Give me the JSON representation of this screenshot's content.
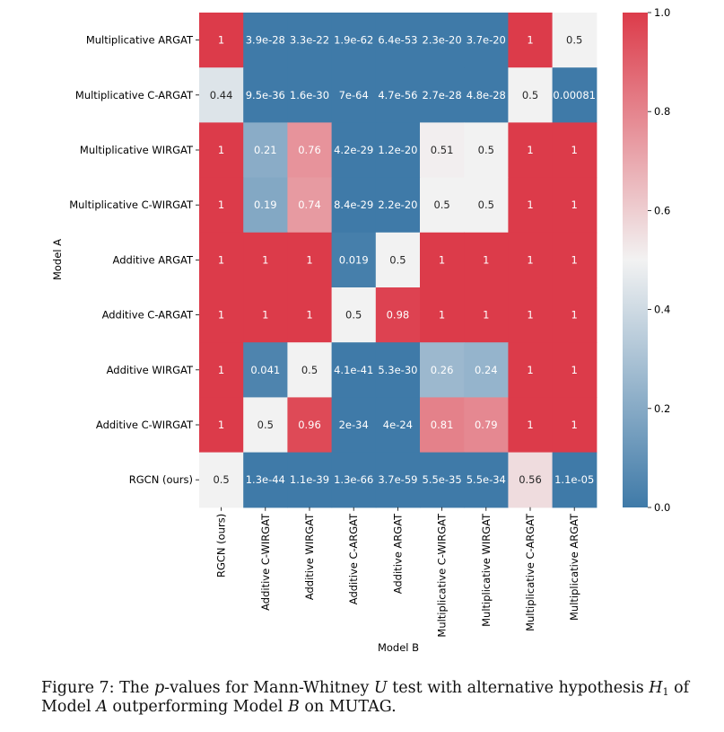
{
  "chart_data": {
    "type": "heatmap",
    "title": "",
    "xlabel": "Model B",
    "ylabel": "Model A",
    "row_labels": [
      "Multiplicative ARGAT",
      "Multiplicative C-ARGAT",
      "Multiplicative WIRGAT",
      "Multiplicative C-WIRGAT",
      "Additive ARGAT",
      "Additive C-ARGAT",
      "Additive WIRGAT",
      "Additive C-WIRGAT",
      "RGCN (ours)"
    ],
    "col_labels": [
      "RGCN (ours)",
      "Additive C-WIRGAT",
      "Additive WIRGAT",
      "Additive C-ARGAT",
      "Additive ARGAT",
      "Multiplicative C-WIRGAT",
      "Multiplicative WIRGAT",
      "Multiplicative C-ARGAT",
      "Multiplicative ARGAT"
    ],
    "cell_labels": [
      [
        "1",
        "3.9e-28",
        "3.3e-22",
        "1.9e-62",
        "6.4e-53",
        "2.3e-20",
        "3.7e-20",
        "1",
        "0.5"
      ],
      [
        "0.44",
        "9.5e-36",
        "1.6e-30",
        "7e-64",
        "4.7e-56",
        "2.7e-28",
        "4.8e-28",
        "0.5",
        "0.00081"
      ],
      [
        "1",
        "0.21",
        "0.76",
        "4.2e-29",
        "1.2e-20",
        "0.51",
        "0.5",
        "1",
        "1"
      ],
      [
        "1",
        "0.19",
        "0.74",
        "8.4e-29",
        "2.2e-20",
        "0.5",
        "0.5",
        "1",
        "1"
      ],
      [
        "1",
        "1",
        "1",
        "0.019",
        "0.5",
        "1",
        "1",
        "1",
        "1"
      ],
      [
        "1",
        "1",
        "1",
        "0.5",
        "0.98",
        "1",
        "1",
        "1",
        "1"
      ],
      [
        "1",
        "0.041",
        "0.5",
        "4.1e-41",
        "5.3e-30",
        "0.26",
        "0.24",
        "1",
        "1"
      ],
      [
        "1",
        "0.5",
        "0.96",
        "2e-34",
        "4e-24",
        "0.81",
        "0.79",
        "1",
        "1"
      ],
      [
        "0.5",
        "1.3e-44",
        "1.1e-39",
        "1.3e-66",
        "3.7e-59",
        "5.5e-35",
        "5.5e-34",
        "0.56",
        "1.1e-05"
      ]
    ],
    "value_range": [
      0,
      1
    ],
    "colorbar_ticks": [
      "0.0",
      "0.2",
      "0.4",
      "0.6",
      "0.8",
      "1.0"
    ],
    "colormap": {
      "low": "#3f7aa8",
      "mid": "#f2f2f2",
      "high": "#dc3b4a"
    }
  },
  "caption": {
    "prefix": "Figure 7: The ",
    "p_symbol": "p",
    "middle": "-values for Mann-Whitney ",
    "u_symbol": "U",
    "text2": " test with alternative hypothesis ",
    "h_symbol": "H",
    "h_subscript": "1",
    "text3": " of Model ",
    "a_symbol": "A",
    "text4": " outperforming Model ",
    "b_symbol": "B",
    "text5": " on MUTAG."
  }
}
